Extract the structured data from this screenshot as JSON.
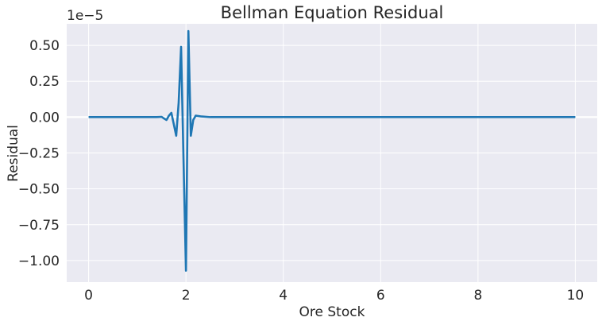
{
  "chart_data": {
    "type": "line",
    "title": "Bellman Equation Residual",
    "xlabel": "Ore Stock",
    "ylabel": "Residual",
    "y_offset_label": "1e−5",
    "xlim": [
      -0.45,
      10.45
    ],
    "ylim": [
      -1.15,
      0.65
    ],
    "xticks": [
      {
        "value": 0,
        "label": "0"
      },
      {
        "value": 2,
        "label": "2"
      },
      {
        "value": 4,
        "label": "4"
      },
      {
        "value": 6,
        "label": "6"
      },
      {
        "value": 8,
        "label": "8"
      },
      {
        "value": 10,
        "label": "10"
      }
    ],
    "yticks": [
      {
        "value": 0.5,
        "label": "0.50"
      },
      {
        "value": 0.25,
        "label": "0.25"
      },
      {
        "value": 0.0,
        "label": "0.00"
      },
      {
        "value": -0.25,
        "label": "−0.25"
      },
      {
        "value": -0.5,
        "label": "−0.50"
      },
      {
        "value": -0.75,
        "label": "−0.75"
      },
      {
        "value": -1.0,
        "label": "−1.00"
      }
    ],
    "grid": true,
    "hline": 0,
    "series": [
      {
        "x": [
          0,
          0.5,
          1.0,
          1.4,
          1.5,
          1.55,
          1.6,
          1.65,
          1.7,
          1.75,
          1.8,
          1.85,
          1.9,
          1.95,
          2.0,
          2.05,
          2.1,
          2.15,
          2.2,
          2.3,
          2.5,
          3.0,
          5.0,
          7.0,
          10.0
        ],
        "y": [
          0.0,
          0.0,
          0.0,
          0.0,
          0.002,
          -0.01,
          -0.02,
          0.01,
          0.03,
          -0.05,
          -0.13,
          0.1,
          0.49,
          -0.3,
          -1.07,
          0.6,
          -0.13,
          -0.02,
          0.01,
          0.005,
          0.0,
          0.0,
          0.0,
          0.0,
          0.0
        ],
        "color": "#1f77b4"
      }
    ]
  },
  "colors": {
    "plot_background": "#eaeaf2",
    "grid": "#ffffff",
    "line": "#1f77b4",
    "text": "#262626"
  }
}
